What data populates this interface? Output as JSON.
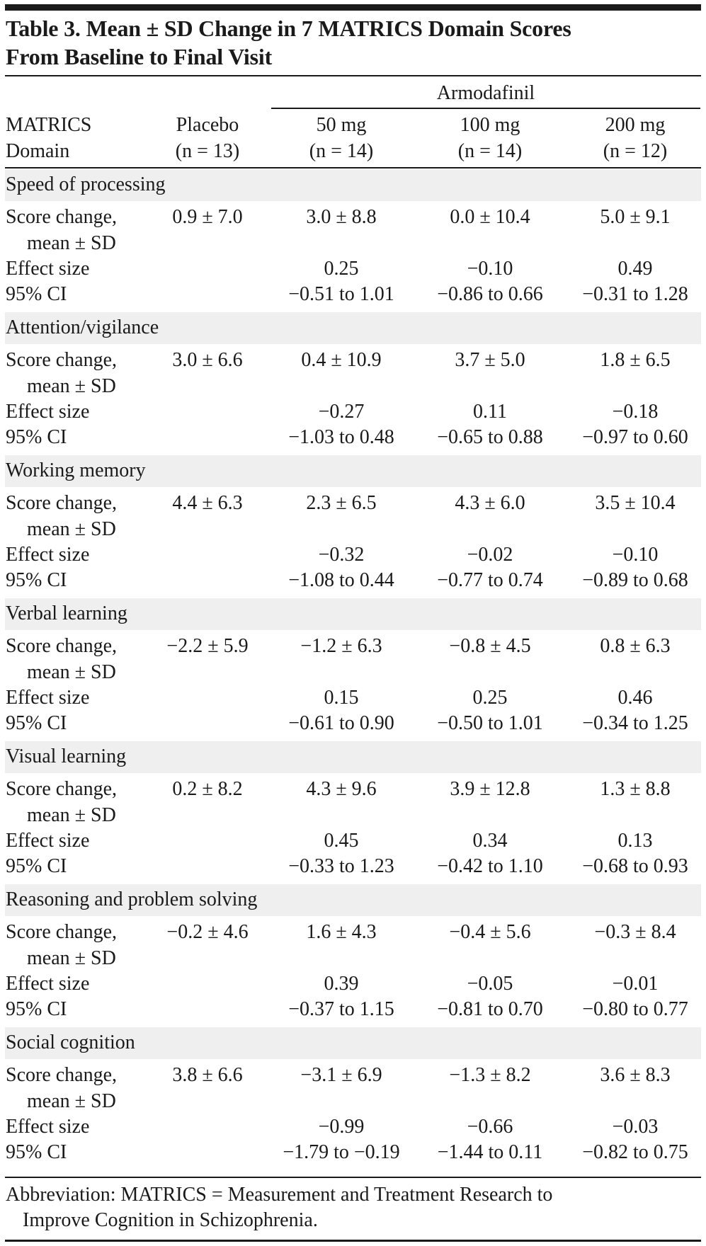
{
  "title": {
    "line1": "Table 3. Mean ± SD Change in 7 MATRICS Domain Scores",
    "line2": "From Baseline to Final Visit"
  },
  "header": {
    "group_label": "Armodafinil",
    "domain_line1": "MATRICS",
    "domain_line2": "Domain",
    "columns": [
      {
        "line1": "Placebo",
        "line2": "(n = 13)"
      },
      {
        "line1": "50 mg",
        "line2": "(n = 14)"
      },
      {
        "line1": "100 mg",
        "line2": "(n = 14)"
      },
      {
        "line1": "200 mg",
        "line2": "(n = 12)"
      }
    ]
  },
  "row_labels": {
    "score_line1": "Score change,",
    "score_line2": "mean ± SD",
    "effect": "Effect size",
    "ci": "95% CI"
  },
  "domains": [
    {
      "name": "Speed of processing",
      "score": [
        "0.9 ± 7.0",
        "3.0 ± 8.8",
        "0.0 ± 10.4",
        "5.0 ± 9.1"
      ],
      "effect": [
        "",
        "0.25",
        "−0.10",
        "0.49"
      ],
      "ci": [
        "",
        "−0.51 to 1.01",
        "−0.86 to 0.66",
        "−0.31 to 1.28"
      ]
    },
    {
      "name": "Attention/vigilance",
      "score": [
        "3.0 ± 6.6",
        "0.4 ± 10.9",
        "3.7 ± 5.0",
        "1.8 ± 6.5"
      ],
      "effect": [
        "",
        "−0.27",
        "0.11",
        "−0.18"
      ],
      "ci": [
        "",
        "−1.03 to 0.48",
        "−0.65 to 0.88",
        "−0.97 to 0.60"
      ]
    },
    {
      "name": "Working memory",
      "score": [
        "4.4 ± 6.3",
        "2.3 ± 6.5",
        "4.3 ± 6.0",
        "3.5 ± 10.4"
      ],
      "effect": [
        "",
        "−0.32",
        "−0.02",
        "−0.10"
      ],
      "ci": [
        "",
        "−1.08 to 0.44",
        "−0.77 to 0.74",
        "−0.89 to 0.68"
      ]
    },
    {
      "name": "Verbal learning",
      "score": [
        "−2.2 ± 5.9",
        "−1.2 ± 6.3",
        "−0.8 ± 4.5",
        "0.8 ± 6.3"
      ],
      "effect": [
        "",
        "0.15",
        "0.25",
        "0.46"
      ],
      "ci": [
        "",
        "−0.61 to 0.90",
        "−0.50 to 1.01",
        "−0.34 to 1.25"
      ]
    },
    {
      "name": "Visual learning",
      "score": [
        "0.2 ± 8.2",
        "4.3 ± 9.6",
        "3.9 ± 12.8",
        "1.3 ± 8.8"
      ],
      "effect": [
        "",
        "0.45",
        "0.34",
        "0.13"
      ],
      "ci": [
        "",
        "−0.33 to 1.23",
        "−0.42 to 1.10",
        "−0.68 to 0.93"
      ]
    },
    {
      "name": "Reasoning and problem solving",
      "score": [
        "−0.2 ± 4.6",
        "1.6 ± 4.3",
        "−0.4 ± 5.6",
        "−0.3 ± 8.4"
      ],
      "effect": [
        "",
        "0.39",
        "−0.05",
        "−0.01"
      ],
      "ci": [
        "",
        "−0.37 to 1.15",
        "−0.81 to 0.70",
        "−0.80 to 0.77"
      ]
    },
    {
      "name": "Social cognition",
      "score": [
        "3.8 ± 6.6",
        "−3.1 ± 6.9",
        "−1.3 ± 8.2",
        "3.6 ± 8.3"
      ],
      "effect": [
        "",
        "−0.99",
        "−0.66",
        "−0.03"
      ],
      "ci": [
        "",
        "−1.79 to −0.19",
        "−1.44 to 0.11",
        "−0.82 to 0.75"
      ]
    }
  ],
  "footnote": {
    "line1": "Abbreviation: MATRICS = Measurement and Treatment Research to",
    "line2": "Improve Cognition in Schizophrenia."
  },
  "colors": {
    "text": "#1a1a1a",
    "band": "#efefef"
  }
}
